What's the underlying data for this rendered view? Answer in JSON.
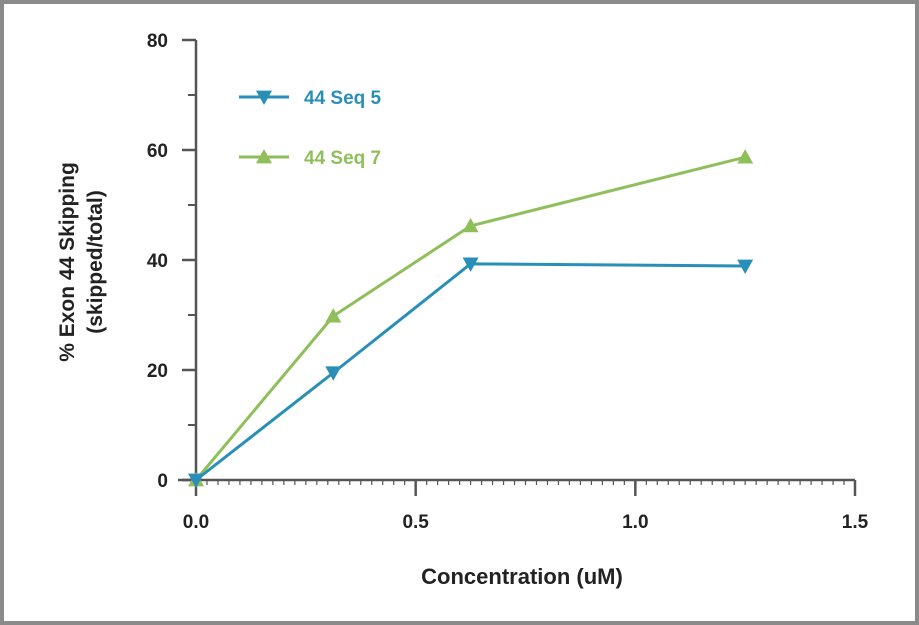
{
  "chart_data": {
    "type": "line",
    "title": "",
    "xlabel": "Concentration (uM)",
    "ylabel": [
      "% Exon 44 Skipping",
      "(skipped/total)"
    ],
    "xlim": [
      0,
      1.5
    ],
    "ylim": [
      0,
      80
    ],
    "xticks": [
      "0.0",
      "0.5",
      "1.0",
      "1.5"
    ],
    "yticks": [
      "0",
      "20",
      "40",
      "60",
      "80"
    ],
    "grid": false,
    "legend_placement": "top-left",
    "series": [
      {
        "name": "44 Seq 5",
        "color": "#2a8fb8",
        "marker": "triangle-down",
        "x": [
          0,
          0.3125,
          0.625,
          1.25
        ],
        "y": [
          0,
          19.5,
          39.3,
          38.9
        ]
      },
      {
        "name": "44 Seq 7",
        "color": "#8fbf5a",
        "marker": "triangle-up",
        "x": [
          0,
          0.3125,
          0.625,
          1.25
        ],
        "y": [
          0,
          29.8,
          46.2,
          58.7
        ]
      }
    ]
  }
}
